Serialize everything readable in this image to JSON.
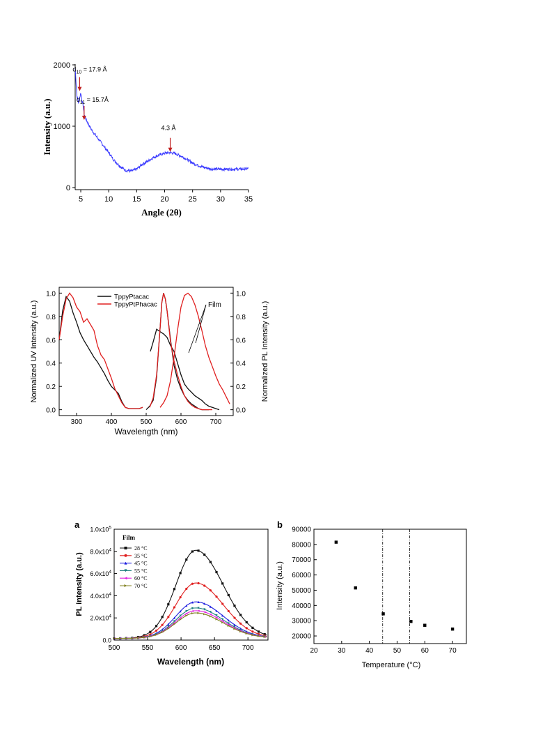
{
  "chart_data": [
    {
      "type": "line",
      "xlabel": "Angle (2θ)",
      "ylabel": "Intensity (a.u.)",
      "xlim": [
        4,
        35
      ],
      "ylim": [
        0,
        2000
      ],
      "xticks": [
        "5",
        "10",
        "15",
        "20",
        "25",
        "30",
        "35"
      ],
      "yticks": [
        "0",
        "1000",
        "2000"
      ],
      "color": "#3b3bff",
      "series": [
        {
          "x": [
            4.0,
            4.3,
            4.6,
            4.8,
            5.0,
            5.2,
            5.4,
            5.6,
            6.0,
            6.5,
            7,
            8,
            9,
            10,
            11,
            12,
            13,
            14,
            15,
            16,
            17,
            18,
            19,
            20,
            21,
            22,
            23,
            24,
            25,
            26,
            27,
            28,
            29,
            30,
            31,
            32,
            33,
            34,
            35
          ],
          "y": [
            1950,
            1500,
            1380,
            1450,
            1550,
            1420,
            1350,
            1200,
            1100,
            1010,
            930,
            810,
            690,
            570,
            440,
            350,
            280,
            270,
            300,
            380,
            430,
            490,
            530,
            560,
            570,
            550,
            510,
            460,
            400,
            360,
            330,
            310,
            300,
            300,
            300,
            300,
            300,
            300,
            310
          ]
        }
      ],
      "annotations": [
        {
          "pre": "d",
          "sub": "10",
          "post": " = 17.9 Å",
          "x": 4.8,
          "y": 1550
        },
        {
          "pre": "d",
          "sub": "11",
          "post": " = 15.7Å",
          "x": 5.6,
          "y": 1080
        },
        {
          "pre": "",
          "sub": "",
          "post": "4.3 Å",
          "x": 21,
          "y": 560
        }
      ]
    },
    {
      "type": "line",
      "xlabel": "Wavelength (nm)",
      "ylabel": "Normalized UV Intensity (a.u.)",
      "y2label": "Normalized PL Intensity (a.u.)",
      "xlim": [
        250,
        750
      ],
      "ylim": [
        -0.05,
        1.05
      ],
      "xticks": [
        "300",
        "400",
        "500",
        "600",
        "700"
      ],
      "yticks": [
        "0.0",
        "0.2",
        "0.4",
        "0.6",
        "0.8",
        "1.0"
      ],
      "annotation": "Film",
      "series": [
        {
          "name": "TppyPtacac",
          "color": "#111111",
          "uv": {
            "x": [
              250,
              260,
              270,
              280,
              290,
              300,
              310,
              320,
              330,
              340,
              350,
              360,
              370,
              380,
              390,
              400,
              410,
              420,
              430,
              440,
              450,
              460,
              470,
              480,
              490
            ],
            "y": [
              0.6,
              0.85,
              0.97,
              0.93,
              0.83,
              0.75,
              0.66,
              0.6,
              0.55,
              0.5,
              0.45,
              0.41,
              0.36,
              0.31,
              0.25,
              0.2,
              0.17,
              0.14,
              0.07,
              0.02,
              0.01,
              0.01,
              0.01,
              0.01,
              0.02
            ]
          },
          "pl": [
            {
              "x": [
                512,
                520,
                530,
                540,
                550,
                560,
                570,
                580,
                590,
                600,
                610,
                620,
                630,
                640,
                650,
                660,
                670,
                680,
                690,
                700,
                710
              ],
              "y": [
                0.5,
                0.58,
                0.69,
                0.67,
                0.65,
                0.62,
                0.55,
                0.5,
                0.4,
                0.3,
                0.22,
                0.18,
                0.15,
                0.12,
                0.1,
                0.08,
                0.05,
                0.03,
                0.02,
                0.01,
                0.0
              ]
            },
            {
              "x": [
                500,
                510,
                520,
                530,
                540,
                545,
                550,
                555,
                560,
                570,
                580,
                590,
                600,
                610,
                620,
                630,
                640,
                650,
                660,
                670,
                680
              ],
              "y": [
                0.0,
                0.03,
                0.08,
                0.28,
                0.7,
                0.92,
                1.0,
                0.95,
                0.85,
                0.6,
                0.38,
                0.26,
                0.18,
                0.12,
                0.08,
                0.05,
                0.03,
                0.01,
                0.0,
                0.0,
                0.0
              ]
            }
          ]
        },
        {
          "name": "TppyPtPhacac",
          "color": "#e02020",
          "uv": {
            "x": [
              250,
              260,
              270,
              280,
              290,
              300,
              310,
              320,
              330,
              340,
              350,
              360,
              370,
              380,
              390,
              400,
              410,
              420,
              430,
              440,
              450,
              460,
              470,
              480,
              490
            ],
            "y": [
              0.6,
              0.8,
              0.95,
              1.0,
              0.96,
              0.88,
              0.84,
              0.75,
              0.78,
              0.73,
              0.68,
              0.55,
              0.47,
              0.43,
              0.35,
              0.27,
              0.18,
              0.12,
              0.06,
              0.02,
              0.01,
              0.01,
              0.01,
              0.01,
              0.02
            ]
          },
          "pl": [
            {
              "x": [
                510,
                520,
                530,
                540,
                545,
                550,
                555,
                560,
                570,
                580,
                590,
                600,
                610,
                620,
                630,
                640,
                650,
                660,
                670,
                680,
                690
              ],
              "y": [
                0.02,
                0.1,
                0.3,
                0.7,
                0.92,
                1.0,
                0.95,
                0.85,
                0.58,
                0.42,
                0.3,
                0.2,
                0.12,
                0.07,
                0.04,
                0.02,
                0.01,
                0.0,
                0.0,
                0.0,
                0.0
              ]
            },
            {
              "x": [
                540,
                550,
                560,
                570,
                580,
                590,
                600,
                610,
                620,
                630,
                640,
                650,
                660,
                670,
                680,
                690,
                700,
                710,
                720,
                730,
                740
              ],
              "y": [
                0.02,
                0.06,
                0.12,
                0.25,
                0.45,
                0.68,
                0.88,
                0.98,
                1.0,
                0.97,
                0.9,
                0.8,
                0.68,
                0.55,
                0.45,
                0.37,
                0.29,
                0.22,
                0.17,
                0.11,
                0.05
              ]
            }
          ]
        }
      ]
    },
    {
      "type": "line",
      "panel": "a",
      "xlabel": "Wavelength (nm)",
      "ylabel": "PL intensity (a.u.)",
      "xlim": [
        500,
        730
      ],
      "ylim": [
        0,
        100000
      ],
      "xticks": [
        "500",
        "550",
        "600",
        "650",
        "700"
      ],
      "yticks": [
        {
          "m": "0.0",
          "e": ""
        },
        {
          "m": "2.0x10",
          "e": "4"
        },
        {
          "m": "4.0x10",
          "e": "4"
        },
        {
          "m": "6.0x10",
          "e": "4"
        },
        {
          "m": "8.0x10",
          "e": "4"
        },
        {
          "m": "1.0x10",
          "e": "5"
        }
      ],
      "legend_title": "Film",
      "legend_position": "top-left",
      "peak_x": 622,
      "series": [
        {
          "name": "28 °C",
          "peak": 81000,
          "color": "#111111",
          "marker": "square"
        },
        {
          "name": "35 °C",
          "peak": 51500,
          "color": "#e02020",
          "marker": "circle"
        },
        {
          "name": "45 °C",
          "peak": 34500,
          "color": "#2020e0",
          "marker": "triangle-up"
        },
        {
          "name": "55 °C",
          "peak": 29000,
          "color": "#208080",
          "marker": "triangle-down"
        },
        {
          "name": "60 °C",
          "peak": 26500,
          "color": "#e020e0",
          "marker": "triangle-left"
        },
        {
          "name": "70 °C",
          "peak": 24500,
          "color": "#808020",
          "marker": "triangle-right"
        }
      ]
    },
    {
      "type": "scatter",
      "panel": "b",
      "xlabel": "Temperature (°C)",
      "ylabel": "Intensity (a.u.)",
      "xlim": [
        20,
        75
      ],
      "ylim": [
        15000,
        90000
      ],
      "xticks": [
        "20",
        "30",
        "40",
        "50",
        "60",
        "70"
      ],
      "yticks": [
        "20000",
        "30000",
        "40000",
        "50000",
        "60000",
        "70000",
        "80000",
        "90000"
      ],
      "vlines": [
        44.8,
        54.5
      ],
      "points": {
        "x": [
          28,
          35,
          45,
          55,
          60,
          70
        ],
        "y": [
          81500,
          51500,
          34500,
          29500,
          27000,
          24500
        ]
      }
    }
  ]
}
